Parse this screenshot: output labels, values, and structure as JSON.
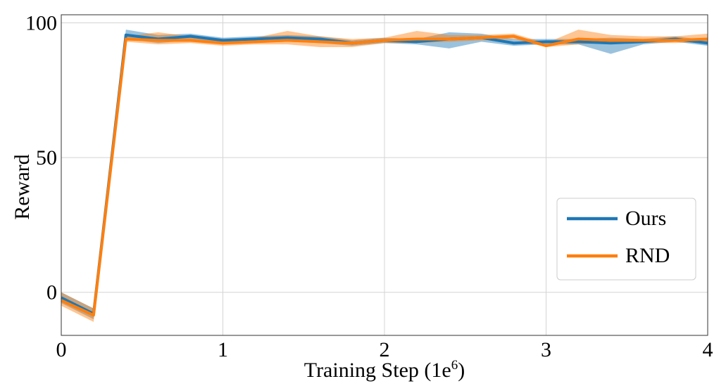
{
  "chart_data": {
    "type": "line",
    "title": "",
    "xlabel": "Training Step (1e",
    "xlabel_superscript": "6",
    "xlabel_suffix": ")",
    "ylabel": "Reward",
    "xlim": [
      0,
      4
    ],
    "ylim": [
      -16,
      103
    ],
    "xticks": [
      0,
      1,
      2,
      3,
      4
    ],
    "xtick_labels": [
      "0",
      "1",
      "2",
      "3",
      "4"
    ],
    "yticks": [
      0,
      50,
      100
    ],
    "ytick_labels": [
      "0",
      "50",
      "100"
    ],
    "grid": true,
    "legend_position": "right",
    "x": [
      0,
      0.2,
      0.4,
      0.6,
      0.8,
      1.0,
      1.2,
      1.4,
      1.6,
      1.8,
      2.0,
      2.2,
      2.4,
      2.6,
      2.8,
      3.0,
      3.2,
      3.4,
      3.6,
      3.8,
      4.0
    ],
    "series": [
      {
        "name": "Ours",
        "color": "#1f77b4",
        "values": [
          -2,
          -8,
          95.5,
          94,
          95,
          93.5,
          94,
          94.5,
          94,
          92.5,
          93.5,
          93,
          94,
          94.5,
          92.5,
          93,
          93,
          92.5,
          93,
          94,
          92.5
        ],
        "lower": [
          -4,
          -10,
          94,
          92.5,
          93.5,
          92.5,
          92.5,
          93,
          92.5,
          91.5,
          92.5,
          92,
          90.5,
          93,
          91.5,
          92,
          92,
          88.5,
          92,
          93,
          91.5
        ],
        "upper": [
          0,
          -6,
          97.5,
          95.5,
          96,
          94.5,
          95,
          95.5,
          95,
          93.5,
          94.5,
          94,
          96.5,
          96,
          94,
          94,
          94,
          94.5,
          94,
          95,
          93.5
        ]
      },
      {
        "name": "RND",
        "color": "#ff7f0e",
        "values": [
          -3,
          -8.5,
          94,
          93.5,
          93.5,
          92.5,
          93,
          93.5,
          93,
          92.5,
          93.5,
          94,
          94,
          94.5,
          95,
          91.5,
          94,
          93.5,
          93.5,
          93.5,
          94
        ],
        "lower": [
          -5,
          -11,
          93,
          92,
          92.5,
          91.5,
          92,
          92,
          91,
          91,
          92.5,
          92.5,
          93,
          93.5,
          94,
          91,
          92,
          92.5,
          92.5,
          92.5,
          93
        ],
        "upper": [
          0,
          -6,
          95,
          96.5,
          95,
          93.5,
          94.5,
          97,
          95,
          94,
          94.5,
          97,
          95.5,
          95.5,
          96,
          92.5,
          97.5,
          95.5,
          95,
          95,
          96
        ]
      }
    ]
  }
}
